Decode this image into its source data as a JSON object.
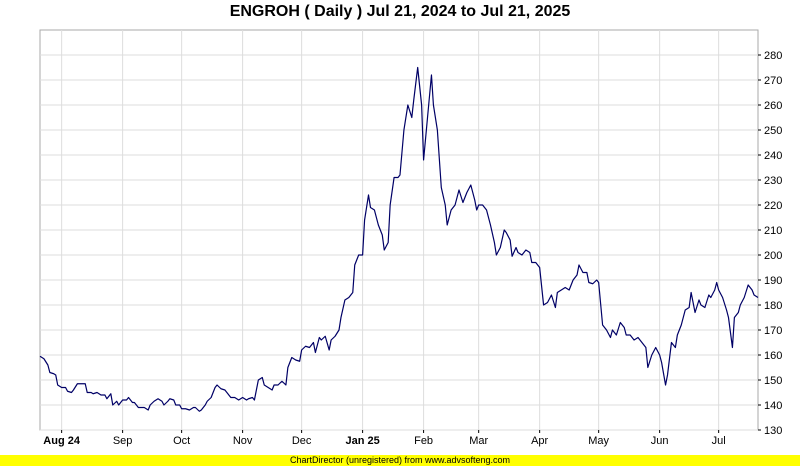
{
  "chart_data": {
    "type": "line",
    "title": "ENGROH ( Daily ) Jul 21, 2024 to Jul 21, 2025",
    "xlabel": "",
    "ylabel": "",
    "ylim": [
      130,
      290
    ],
    "y_ticks": [
      130,
      140,
      150,
      160,
      170,
      180,
      190,
      200,
      210,
      220,
      230,
      240,
      250,
      260,
      270,
      280
    ],
    "x_range": [
      "2024-07-21",
      "2025-07-21"
    ],
    "x_ticks": [
      {
        "date": "2024-08-01",
        "label": "Aug 24",
        "bold": true
      },
      {
        "date": "2024-09-01",
        "label": "Sep",
        "bold": false
      },
      {
        "date": "2024-10-01",
        "label": "Oct",
        "bold": false
      },
      {
        "date": "2024-11-01",
        "label": "Nov",
        "bold": false
      },
      {
        "date": "2024-12-01",
        "label": "Dec",
        "bold": false
      },
      {
        "date": "2025-01-01",
        "label": "Jan 25",
        "bold": true
      },
      {
        "date": "2025-02-01",
        "label": "Feb",
        "bold": false
      },
      {
        "date": "2025-03-01",
        "label": "Mar",
        "bold": false
      },
      {
        "date": "2025-04-01",
        "label": "Apr",
        "bold": false
      },
      {
        "date": "2025-05-01",
        "label": "May",
        "bold": false
      },
      {
        "date": "2025-06-01",
        "label": "Jun",
        "bold": false
      },
      {
        "date": "2025-07-01",
        "label": "Jul",
        "bold": false
      }
    ],
    "grid": true,
    "line_color": "#000066",
    "series": [
      {
        "points": [
          [
            "2024-07-21",
            159.5
          ],
          [
            "2024-07-23",
            158.5
          ],
          [
            "2024-07-25",
            156
          ],
          [
            "2024-07-26",
            153
          ],
          [
            "2024-07-28",
            152.5
          ],
          [
            "2024-07-29",
            152
          ],
          [
            "2024-07-30",
            148
          ],
          [
            "2024-08-01",
            147
          ],
          [
            "2024-08-03",
            147
          ],
          [
            "2024-08-04",
            145.5
          ],
          [
            "2024-08-06",
            145
          ],
          [
            "2024-08-07",
            146
          ],
          [
            "2024-08-09",
            148.5
          ],
          [
            "2024-08-11",
            148.5
          ],
          [
            "2024-08-13",
            148.5
          ],
          [
            "2024-08-14",
            145
          ],
          [
            "2024-08-16",
            145
          ],
          [
            "2024-08-17",
            144.5
          ],
          [
            "2024-08-19",
            145
          ],
          [
            "2024-08-21",
            144
          ],
          [
            "2024-08-23",
            144
          ],
          [
            "2024-08-24",
            142.5
          ],
          [
            "2024-08-26",
            144.5
          ],
          [
            "2024-08-27",
            140
          ],
          [
            "2024-08-29",
            141.5
          ],
          [
            "2024-08-30",
            140
          ],
          [
            "2024-09-01",
            142
          ],
          [
            "2024-09-03",
            142
          ],
          [
            "2024-09-04",
            143
          ],
          [
            "2024-09-06",
            141
          ],
          [
            "2024-09-07",
            141
          ],
          [
            "2024-09-09",
            139
          ],
          [
            "2024-09-11",
            139
          ],
          [
            "2024-09-12",
            139
          ],
          [
            "2024-09-14",
            138
          ],
          [
            "2024-09-15",
            140
          ],
          [
            "2024-09-17",
            141.5
          ],
          [
            "2024-09-19",
            142.5
          ],
          [
            "2024-09-21",
            141.5
          ],
          [
            "2024-09-22",
            140
          ],
          [
            "2024-09-24",
            141.5
          ],
          [
            "2024-09-25",
            142.5
          ],
          [
            "2024-09-27",
            142
          ],
          [
            "2024-09-28",
            140
          ],
          [
            "2024-09-30",
            140
          ],
          [
            "2024-10-01",
            138.5
          ],
          [
            "2024-10-03",
            138.5
          ],
          [
            "2024-10-05",
            138
          ],
          [
            "2024-10-07",
            139
          ],
          [
            "2024-10-08",
            139
          ],
          [
            "2024-10-10",
            137.5
          ],
          [
            "2024-10-11",
            138
          ],
          [
            "2024-10-13",
            140
          ],
          [
            "2024-10-14",
            141.5
          ],
          [
            "2024-10-16",
            143
          ],
          [
            "2024-10-18",
            147
          ],
          [
            "2024-10-19",
            148
          ],
          [
            "2024-10-21",
            146.5
          ],
          [
            "2024-10-23",
            146
          ],
          [
            "2024-10-25",
            144
          ],
          [
            "2024-10-26",
            143
          ],
          [
            "2024-10-28",
            143
          ],
          [
            "2024-10-30",
            142
          ],
          [
            "2024-11-01",
            143
          ],
          [
            "2024-11-03",
            142
          ],
          [
            "2024-11-04",
            142.5
          ],
          [
            "2024-11-06",
            143
          ],
          [
            "2024-11-07",
            142
          ],
          [
            "2024-11-09",
            150
          ],
          [
            "2024-11-11",
            151
          ],
          [
            "2024-11-12",
            148
          ],
          [
            "2024-11-14",
            147
          ],
          [
            "2024-11-16",
            146
          ],
          [
            "2024-11-17",
            148
          ],
          [
            "2024-11-19",
            148
          ],
          [
            "2024-11-21",
            149.5
          ],
          [
            "2024-11-23",
            148
          ],
          [
            "2024-11-24",
            155
          ],
          [
            "2024-11-26",
            159
          ],
          [
            "2024-11-28",
            158
          ],
          [
            "2024-11-30",
            157.5
          ],
          [
            "2024-12-01",
            162
          ],
          [
            "2024-12-03",
            163.5
          ],
          [
            "2024-12-05",
            163
          ],
          [
            "2024-12-07",
            165
          ],
          [
            "2024-12-08",
            161
          ],
          [
            "2024-12-10",
            167
          ],
          [
            "2024-12-11",
            166
          ],
          [
            "2024-12-13",
            167.5
          ],
          [
            "2024-12-15",
            162
          ],
          [
            "2024-12-16",
            166
          ],
          [
            "2024-12-18",
            167.5
          ],
          [
            "2024-12-20",
            170
          ],
          [
            "2024-12-21",
            175
          ],
          [
            "2024-12-23",
            182
          ],
          [
            "2024-12-25",
            183
          ],
          [
            "2024-12-27",
            185
          ],
          [
            "2024-12-28",
            196
          ],
          [
            "2024-12-30",
            200
          ],
          [
            "2025-01-01",
            200
          ],
          [
            "2025-01-02",
            214
          ],
          [
            "2025-01-04",
            224
          ],
          [
            "2025-01-05",
            219
          ],
          [
            "2025-01-07",
            218
          ],
          [
            "2025-01-09",
            212
          ],
          [
            "2025-01-11",
            208
          ],
          [
            "2025-01-12",
            202
          ],
          [
            "2025-01-14",
            205
          ],
          [
            "2025-01-15",
            220
          ],
          [
            "2025-01-17",
            231
          ],
          [
            "2025-01-19",
            231
          ],
          [
            "2025-01-20",
            232
          ],
          [
            "2025-01-22",
            250
          ],
          [
            "2025-01-24",
            260
          ],
          [
            "2025-01-26",
            255
          ],
          [
            "2025-01-27",
            262
          ],
          [
            "2025-01-29",
            275
          ],
          [
            "2025-01-31",
            260
          ],
          [
            "2025-02-01",
            238
          ],
          [
            "2025-02-03",
            255
          ],
          [
            "2025-02-05",
            272
          ],
          [
            "2025-02-06",
            260
          ],
          [
            "2025-02-08",
            250
          ],
          [
            "2025-02-10",
            227
          ],
          [
            "2025-02-12",
            220
          ],
          [
            "2025-02-13",
            212
          ],
          [
            "2025-02-15",
            218
          ],
          [
            "2025-02-17",
            220
          ],
          [
            "2025-02-19",
            226
          ],
          [
            "2025-02-21",
            221
          ],
          [
            "2025-02-23",
            225
          ],
          [
            "2025-02-25",
            228
          ],
          [
            "2025-02-27",
            222
          ],
          [
            "2025-02-28",
            218
          ],
          [
            "2025-03-01",
            220
          ],
          [
            "2025-03-03",
            220
          ],
          [
            "2025-03-05",
            218
          ],
          [
            "2025-03-07",
            212
          ],
          [
            "2025-03-09",
            205
          ],
          [
            "2025-03-10",
            200
          ],
          [
            "2025-03-12",
            203
          ],
          [
            "2025-03-14",
            210
          ],
          [
            "2025-03-15",
            209
          ],
          [
            "2025-03-17",
            206
          ],
          [
            "2025-03-18",
            199.5
          ],
          [
            "2025-03-20",
            203
          ],
          [
            "2025-03-21",
            201
          ],
          [
            "2025-03-23",
            200
          ],
          [
            "2025-03-25",
            202
          ],
          [
            "2025-03-27",
            201
          ],
          [
            "2025-03-28",
            197
          ],
          [
            "2025-03-30",
            197
          ],
          [
            "2025-04-01",
            195
          ],
          [
            "2025-04-03",
            180
          ],
          [
            "2025-04-05",
            181
          ],
          [
            "2025-04-07",
            184
          ],
          [
            "2025-04-09",
            179
          ],
          [
            "2025-04-10",
            185
          ],
          [
            "2025-04-12",
            186
          ],
          [
            "2025-04-14",
            187
          ],
          [
            "2025-04-16",
            186
          ],
          [
            "2025-04-18",
            190
          ],
          [
            "2025-04-20",
            192
          ],
          [
            "2025-04-21",
            196
          ],
          [
            "2025-04-23",
            193
          ],
          [
            "2025-04-25",
            193
          ],
          [
            "2025-04-26",
            189
          ],
          [
            "2025-04-28",
            188.5
          ],
          [
            "2025-04-30",
            190
          ],
          [
            "2025-05-01",
            189
          ],
          [
            "2025-05-03",
            172
          ],
          [
            "2025-05-05",
            170
          ],
          [
            "2025-05-07",
            167
          ],
          [
            "2025-05-08",
            170
          ],
          [
            "2025-05-10",
            168
          ],
          [
            "2025-05-12",
            173
          ],
          [
            "2025-05-14",
            171
          ],
          [
            "2025-05-15",
            168
          ],
          [
            "2025-05-17",
            168
          ],
          [
            "2025-05-19",
            166
          ],
          [
            "2025-05-21",
            167
          ],
          [
            "2025-05-23",
            165
          ],
          [
            "2025-05-25",
            163
          ],
          [
            "2025-05-26",
            155
          ],
          [
            "2025-05-28",
            160
          ],
          [
            "2025-05-30",
            163
          ],
          [
            "2025-06-01",
            160
          ],
          [
            "2025-06-02",
            157
          ],
          [
            "2025-06-04",
            148
          ],
          [
            "2025-06-05",
            152
          ],
          [
            "2025-06-07",
            165
          ],
          [
            "2025-06-09",
            163
          ],
          [
            "2025-06-10",
            168
          ],
          [
            "2025-06-12",
            172
          ],
          [
            "2025-06-14",
            178
          ],
          [
            "2025-06-16",
            179
          ],
          [
            "2025-06-17",
            185
          ],
          [
            "2025-06-19",
            177
          ],
          [
            "2025-06-21",
            182
          ],
          [
            "2025-06-22",
            180
          ],
          [
            "2025-06-24",
            179
          ],
          [
            "2025-06-26",
            184
          ],
          [
            "2025-06-27",
            183
          ],
          [
            "2025-06-29",
            186
          ],
          [
            "2025-06-30",
            189
          ],
          [
            "2025-07-01",
            186
          ],
          [
            "2025-07-03",
            183
          ],
          [
            "2025-07-05",
            178
          ],
          [
            "2025-07-06",
            175
          ],
          [
            "2025-07-08",
            163
          ],
          [
            "2025-07-09",
            175
          ],
          [
            "2025-07-11",
            177
          ],
          [
            "2025-07-12",
            180
          ],
          [
            "2025-07-14",
            183
          ],
          [
            "2025-07-16",
            188
          ],
          [
            "2025-07-18",
            186
          ],
          [
            "2025-07-19",
            184
          ],
          [
            "2025-07-21",
            183
          ]
        ]
      }
    ]
  },
  "footer": {
    "text": "ChartDirector (unregistered) from www.advsofteng.com"
  }
}
